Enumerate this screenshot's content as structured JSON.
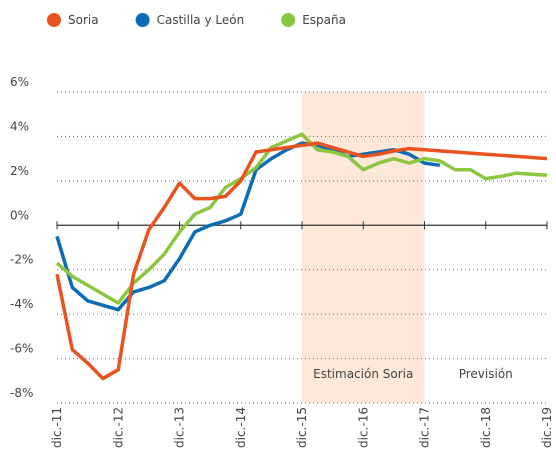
{
  "chart_data": {
    "type": "line",
    "categories": [
      "dic.-11",
      null,
      null,
      null,
      "dic.-12",
      null,
      null,
      null,
      "dic.-13",
      null,
      null,
      null,
      "dic.-14",
      null,
      null,
      null,
      "dic.-15",
      null,
      null,
      null,
      "dic.-16",
      null,
      null,
      null,
      "dic.-17",
      null,
      null,
      null,
      "dic.-18",
      null,
      null,
      null,
      "dic.-19"
    ],
    "series": [
      {
        "name": "Soria",
        "color": "#e8531f",
        "values": [
          -2.2,
          -5.6,
          -6.2,
          -6.9,
          -6.5,
          -2.2,
          -0.2,
          0.8,
          1.9,
          1.2,
          1.2,
          1.3,
          2.0,
          3.3,
          3.4,
          3.5,
          3.6,
          3.7,
          3.5,
          3.3,
          3.1,
          3.2,
          3.35,
          3.45,
          3.4,
          3.35,
          3.3,
          3.25,
          3.2,
          3.15,
          3.1,
          3.05,
          3.0
        ]
      },
      {
        "name": "Castilla y León",
        "color": "#0a6db5",
        "values": [
          -0.5,
          -2.8,
          -3.4,
          -3.6,
          -3.8,
          -3.0,
          -2.8,
          -2.5,
          -1.5,
          -0.3,
          0.0,
          0.2,
          0.5,
          2.5,
          3.0,
          3.4,
          3.7,
          3.6,
          3.4,
          3.1,
          3.2,
          3.3,
          3.4,
          3.2,
          2.8,
          2.7,
          null,
          null,
          null,
          null,
          null,
          null,
          null
        ]
      },
      {
        "name": "España",
        "color": "#8cc63f",
        "values": [
          -1.7,
          -2.3,
          -2.7,
          -3.1,
          -3.5,
          -2.6,
          -2.0,
          -1.3,
          -0.3,
          0.5,
          0.8,
          1.7,
          2.1,
          2.6,
          3.5,
          3.8,
          4.1,
          3.4,
          3.3,
          3.1,
          2.5,
          2.8,
          3.0,
          2.8,
          3.0,
          2.9,
          2.5,
          2.5,
          2.1,
          2.2,
          2.35,
          2.3,
          2.25
        ]
      }
    ],
    "ylim": [
      -8,
      6
    ],
    "yticks": [
      {
        "value": -8,
        "label": "-8%"
      },
      {
        "value": -6,
        "label": "-6%"
      },
      {
        "value": -4,
        "label": "-4%"
      },
      {
        "value": -2,
        "label": "-2%"
      },
      {
        "value": 0,
        "label": "0%"
      },
      {
        "value": 2,
        "label": "2%"
      },
      {
        "value": 4,
        "label": "4%"
      },
      {
        "value": 6,
        "label": "6%"
      }
    ],
    "grid": true,
    "legend": "top",
    "shaded": {
      "from": "dic.-15",
      "to": "dic.-17",
      "color": "#fde8d9"
    },
    "annotations": [
      "Estimación Soria",
      "Previsión"
    ]
  }
}
